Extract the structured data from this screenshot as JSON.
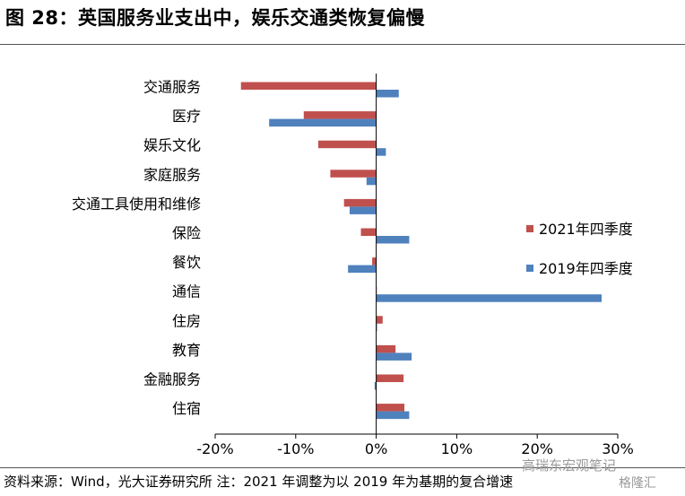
{
  "title": "图 28：英国服务业支出中，娱乐交通类恢复偏慢",
  "source": "资料来源：Wind，光大证券研究所 注：2021 年调整为以 2019 年为基期的复合增速",
  "watermark": "高瑞东宏观笔记",
  "watermark2": "格隆汇",
  "colors": {
    "series_2021": "#c0504d",
    "series_2019": "#4f81bd",
    "axis": "#000000"
  },
  "chart_data": {
    "type": "bar",
    "orientation": "horizontal",
    "categories": [
      "交通服务",
      "医疗",
      "娱乐文化",
      "家庭服务",
      "交通工具使用和维修",
      "保险",
      "餐饮",
      "通信",
      "住房",
      "教育",
      "金融服务",
      "住宿"
    ],
    "series": [
      {
        "name": "2021年四季度",
        "values": [
          -16.8,
          -9.0,
          -7.2,
          -5.7,
          -4.0,
          -1.9,
          -0.5,
          0.0,
          0.8,
          2.4,
          3.4,
          3.5
        ]
      },
      {
        "name": "2019年四季度",
        "values": [
          2.8,
          -13.3,
          1.2,
          -1.2,
          -3.3,
          4.1,
          -3.5,
          28.0,
          0.1,
          4.4,
          -0.2,
          4.1
        ]
      }
    ],
    "xlim": [
      -20,
      30
    ],
    "xticks": [
      -20,
      -10,
      0,
      10,
      20,
      30
    ],
    "tick_labels": [
      "-20%",
      "-10%",
      "0%",
      "10%",
      "20%",
      "30%"
    ],
    "legend_position": "right",
    "grid": false
  }
}
